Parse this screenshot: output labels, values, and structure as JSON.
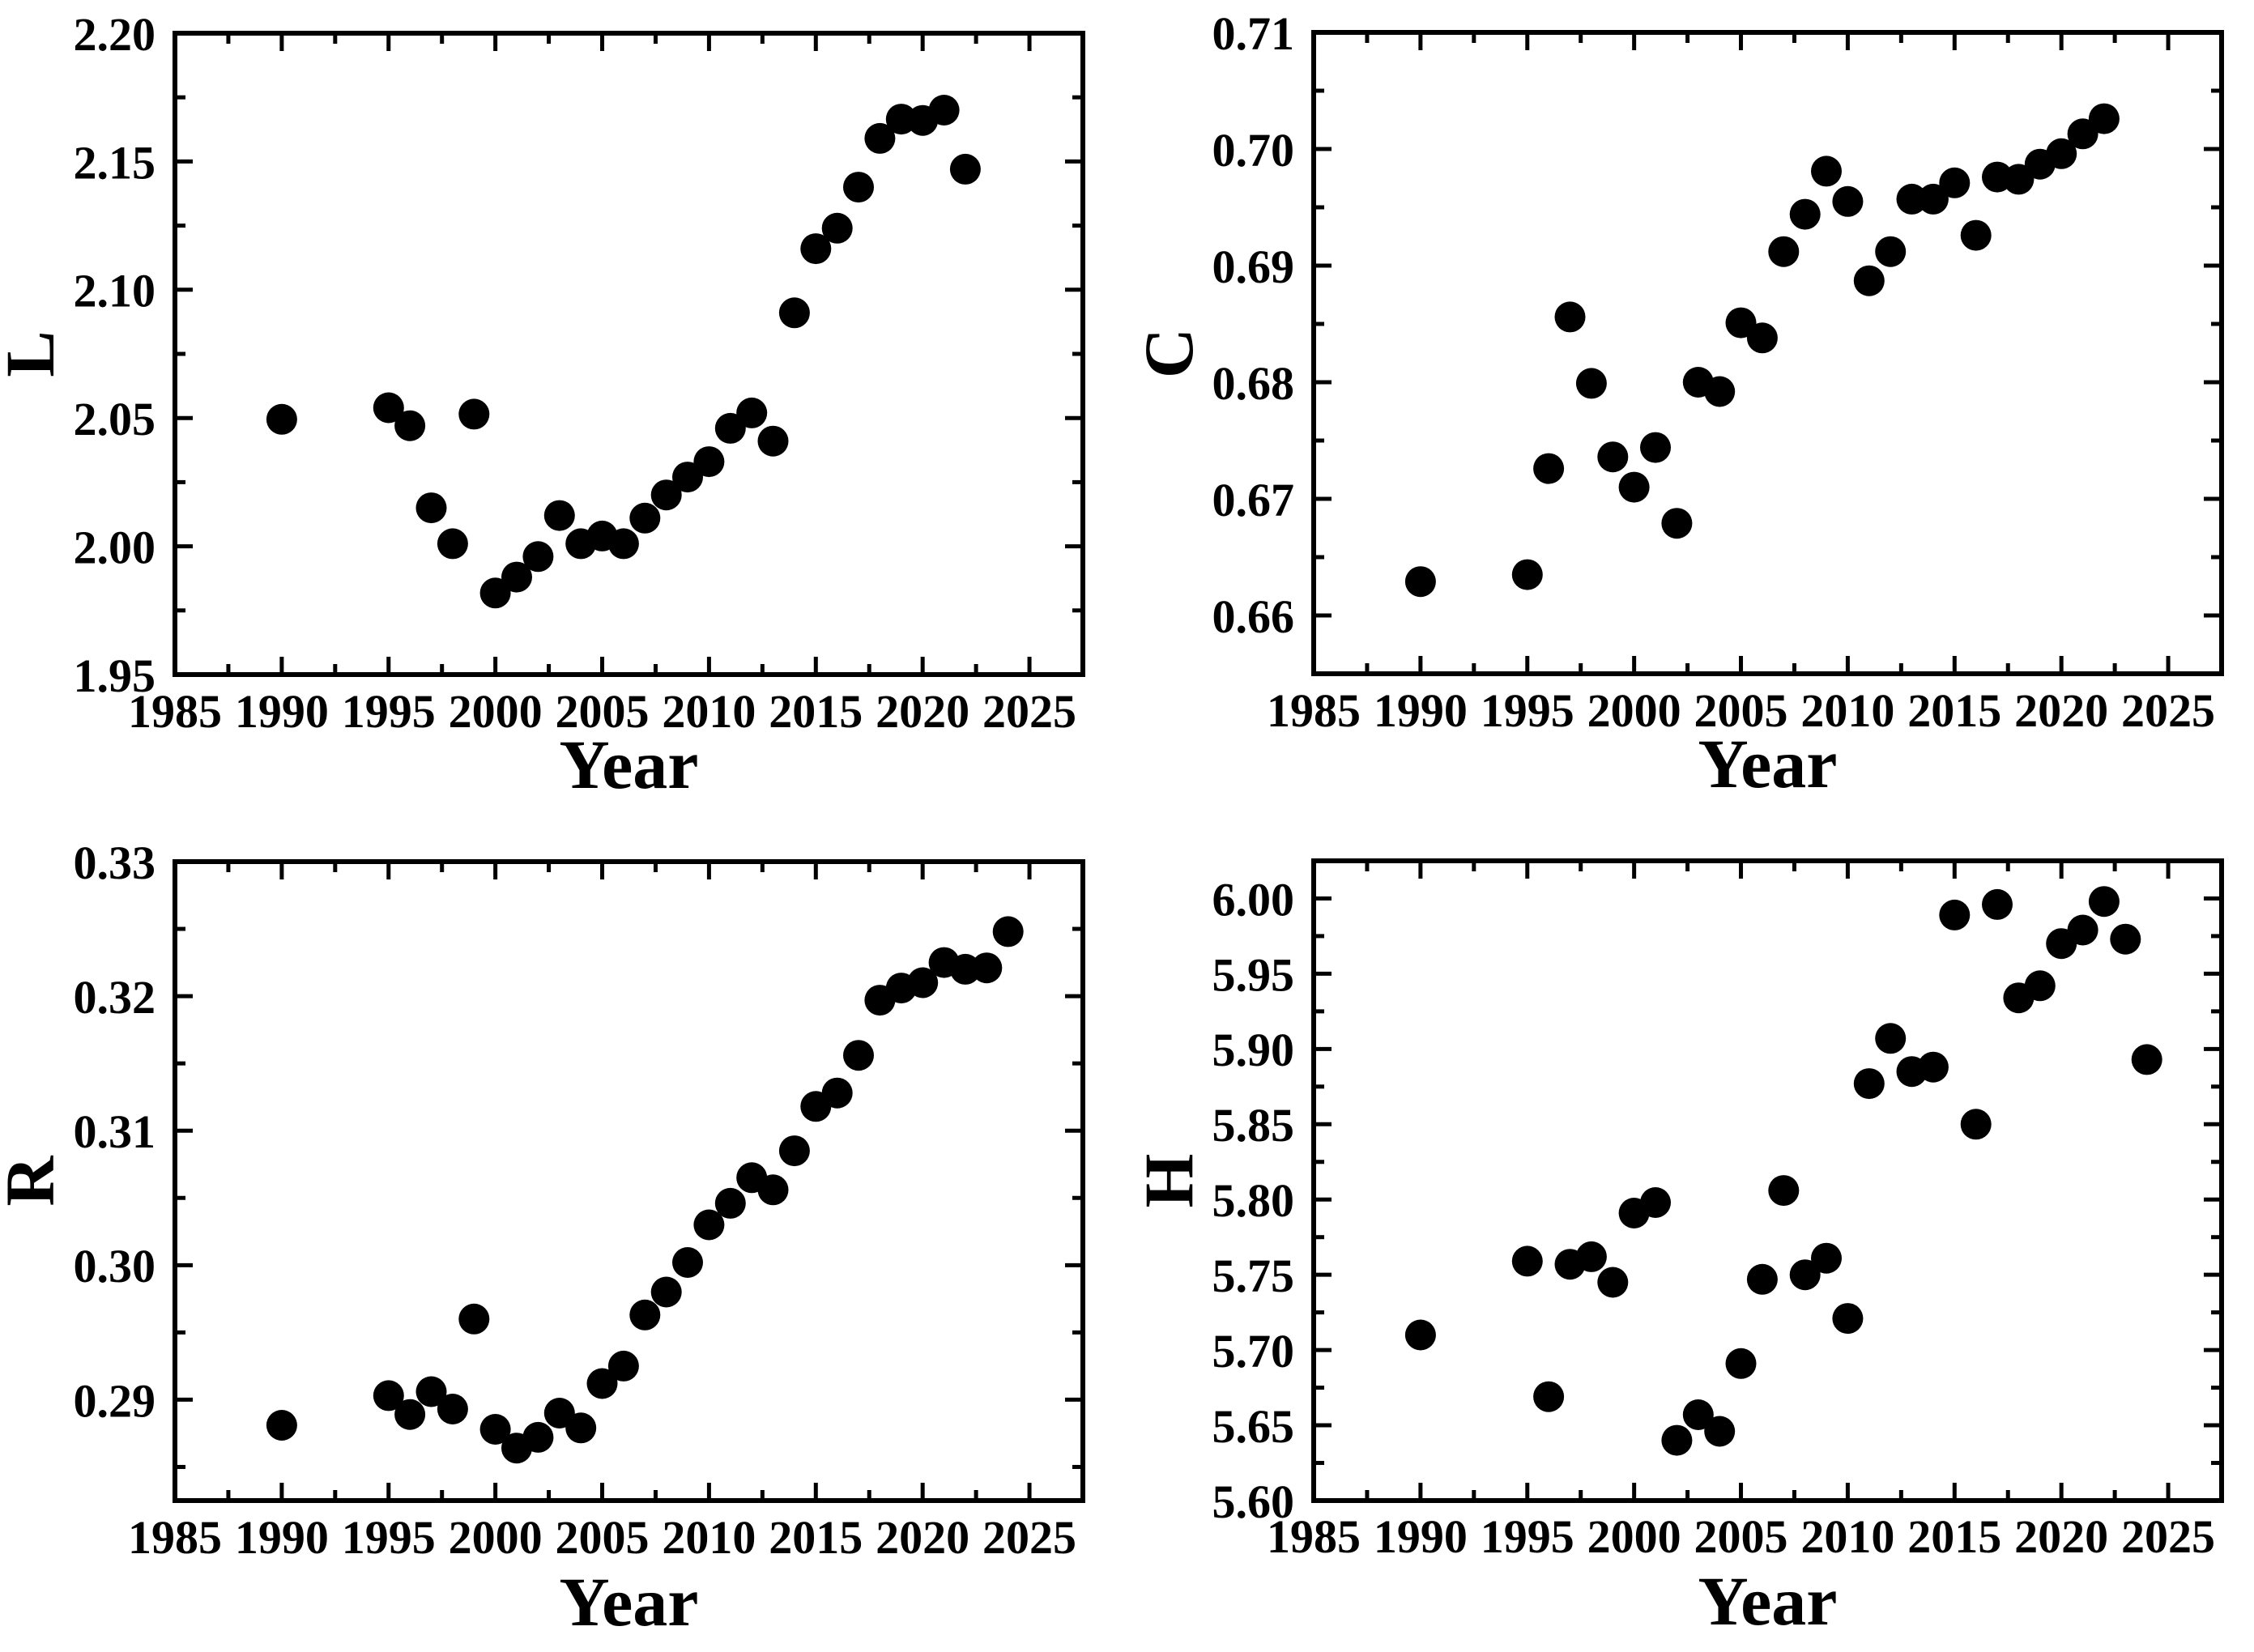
{
  "figure": {
    "background": "#ffffff",
    "marker_color": "#000000",
    "axis_color": "#000000"
  },
  "chart_data": [
    {
      "type": "scatter",
      "title": "",
      "xlabel": "Year",
      "ylabel": "L",
      "xlim": [
        1985,
        2027.5
      ],
      "ylim": [
        1.95,
        2.2
      ],
      "grid": false,
      "legend": "none",
      "xticks": [
        1985,
        1990,
        1995,
        2000,
        2005,
        2010,
        2015,
        2020,
        2025
      ],
      "xtick_labels": [
        "1985",
        "1990",
        "1995",
        "2000",
        "2005",
        "2010",
        "2015",
        "2020",
        "2025"
      ],
      "xminor": [
        1987.5,
        1992.5,
        1997.5,
        2002.5,
        2007.5,
        2012.5,
        2017.5,
        2022.5
      ],
      "yticks": [
        1.95,
        2.0,
        2.05,
        2.1,
        2.15,
        2.2
      ],
      "ytick_labels": [
        "1.95",
        "2.00",
        "2.05",
        "2.10",
        "2.15",
        "2.20"
      ],
      "yminor": [
        1.975,
        2.025,
        2.075,
        2.125,
        2.175
      ],
      "x": [
        1990,
        1995,
        1996,
        1997,
        1998,
        1999,
        2000,
        2001,
        2002,
        2003,
        2004,
        2005,
        2006,
        2007,
        2008,
        2009,
        2010,
        2011,
        2012,
        2013,
        2014,
        2015,
        2016,
        2017,
        2018,
        2019,
        2020,
        2021,
        2022
      ],
      "y": [
        2.0495,
        2.054,
        2.047,
        2.015,
        2.001,
        2.0515,
        1.9818,
        1.988,
        1.996,
        2.012,
        2.001,
        2.004,
        2.001,
        2.011,
        2.02,
        2.027,
        2.033,
        2.046,
        2.052,
        2.041,
        2.091,
        2.116,
        2.124,
        2.14,
        2.159,
        2.1665,
        2.166,
        2.17,
        2.147
      ]
    },
    {
      "type": "scatter",
      "title": "",
      "xlabel": "Year",
      "ylabel": "C",
      "xlim": [
        1985,
        2027.5
      ],
      "ylim": [
        0.655,
        0.71
      ],
      "grid": false,
      "legend": "none",
      "xticks": [
        1985,
        1990,
        1995,
        2000,
        2005,
        2010,
        2015,
        2020,
        2025
      ],
      "xtick_labels": [
        "1985",
        "1990",
        "1995",
        "2000",
        "2005",
        "2010",
        "2015",
        "2020",
        "2025"
      ],
      "xminor": [
        1987.5,
        1992.5,
        1997.5,
        2002.5,
        2007.5,
        2012.5,
        2017.5,
        2022.5
      ],
      "yticks": [
        0.66,
        0.67,
        0.68,
        0.69,
        0.7,
        0.71
      ],
      "ytick_labels": [
        "0.66",
        "0.67",
        "0.68",
        "0.69",
        "0.70",
        "0.71"
      ],
      "yminor": [
        0.665,
        0.675,
        0.685,
        0.695,
        0.705
      ],
      "x": [
        1990,
        1995,
        1996,
        1997,
        1998,
        1999,
        2000,
        2001,
        2002,
        2003,
        2004,
        2005,
        2006,
        2007,
        2008,
        2009,
        2010,
        2011,
        2012,
        2013,
        2014,
        2015,
        2016,
        2017,
        2018,
        2019,
        2020,
        2021,
        2022
      ],
      "y": [
        0.6629,
        0.6635,
        0.6726,
        0.6856,
        0.6799,
        0.6736,
        0.671,
        0.6744,
        0.6679,
        0.68,
        0.6792,
        0.6851,
        0.6838,
        0.6912,
        0.6944,
        0.6981,
        0.6955,
        0.6887,
        0.6912,
        0.6957,
        0.6957,
        0.6971,
        0.6926,
        0.6976,
        0.6974,
        0.6987,
        0.6996,
        0.7013,
        0.7026
      ]
    },
    {
      "type": "scatter",
      "title": "",
      "xlabel": "Year",
      "ylabel": "R",
      "xlim": [
        1985,
        2027.5
      ],
      "ylim": [
        0.2825,
        0.33
      ],
      "grid": false,
      "legend": "none",
      "xticks": [
        1985,
        1990,
        1995,
        2000,
        2005,
        2010,
        2015,
        2020,
        2025
      ],
      "xtick_labels": [
        "1985",
        "1990",
        "1995",
        "2000",
        "2005",
        "2010",
        "2015",
        "2020",
        "2025"
      ],
      "xminor": [
        1987.5,
        1992.5,
        1997.5,
        2002.5,
        2007.5,
        2012.5,
        2017.5,
        2022.5
      ],
      "yticks": [
        0.29,
        0.3,
        0.31,
        0.32,
        0.33
      ],
      "ytick_labels": [
        "0.29",
        "0.30",
        "0.31",
        "0.32",
        "0.33"
      ],
      "yminor": [
        0.285,
        0.295,
        0.305,
        0.315,
        0.325
      ],
      "x": [
        1990,
        1995,
        1996,
        1997,
        1998,
        1999,
        2000,
        2001,
        2002,
        2003,
        2004,
        2005,
        2006,
        2007,
        2008,
        2009,
        2010,
        2011,
        2012,
        2013,
        2014,
        2015,
        2016,
        2017,
        2018,
        2019,
        2020,
        2021,
        2022,
        2023,
        2024
      ],
      "y": [
        0.2881,
        0.2903,
        0.2889,
        0.2906,
        0.2893,
        0.296,
        0.2878,
        0.2864,
        0.2872,
        0.289,
        0.2879,
        0.2912,
        0.2925,
        0.2963,
        0.298,
        0.3002,
        0.303,
        0.3046,
        0.3065,
        0.3056,
        0.3085,
        0.3118,
        0.3128,
        0.3156,
        0.3197,
        0.3206,
        0.321,
        0.3225,
        0.322,
        0.3221,
        0.3248
      ]
    },
    {
      "type": "scatter",
      "title": "",
      "xlabel": "Year",
      "ylabel": "H",
      "xlim": [
        1985,
        2027.5
      ],
      "ylim": [
        5.6,
        6.025
      ],
      "grid": false,
      "legend": "none",
      "xticks": [
        1985,
        1990,
        1995,
        2000,
        2005,
        2010,
        2015,
        2020,
        2025
      ],
      "xtick_labels": [
        "1985",
        "1990",
        "1995",
        "2000",
        "2005",
        "2010",
        "2015",
        "2020",
        "2025"
      ],
      "xminor": [
        1987.5,
        1992.5,
        1997.5,
        2002.5,
        2007.5,
        2012.5,
        2017.5,
        2022.5
      ],
      "yticks": [
        5.6,
        5.65,
        5.7,
        5.75,
        5.8,
        5.85,
        5.9,
        5.95,
        6.0
      ],
      "ytick_labels": [
        "5.60",
        "5.65",
        "5.70",
        "5.75",
        "5.80",
        "5.85",
        "5.90",
        "5.95",
        "6.00"
      ],
      "yminor": [
        5.625,
        5.675,
        5.725,
        5.775,
        5.825,
        5.875,
        5.925,
        5.975
      ],
      "x": [
        1990,
        1995,
        1996,
        1997,
        1998,
        1999,
        2000,
        2001,
        2002,
        2003,
        2004,
        2005,
        2006,
        2007,
        2008,
        2009,
        2010,
        2011,
        2012,
        2013,
        2014,
        2015,
        2016,
        2017,
        2018,
        2019,
        2020,
        2021,
        2022,
        2023,
        2024
      ],
      "y": [
        5.71,
        5.759,
        5.669,
        5.757,
        5.762,
        5.745,
        5.791,
        5.798,
        5.64,
        5.657,
        5.646,
        5.691,
        5.747,
        5.806,
        5.75,
        5.761,
        5.721,
        5.877,
        5.907,
        5.885,
        5.888,
        5.989,
        5.85,
        5.996,
        5.934,
        5.942,
        5.97,
        5.979,
        5.998,
        5.973,
        5.893
      ]
    }
  ]
}
